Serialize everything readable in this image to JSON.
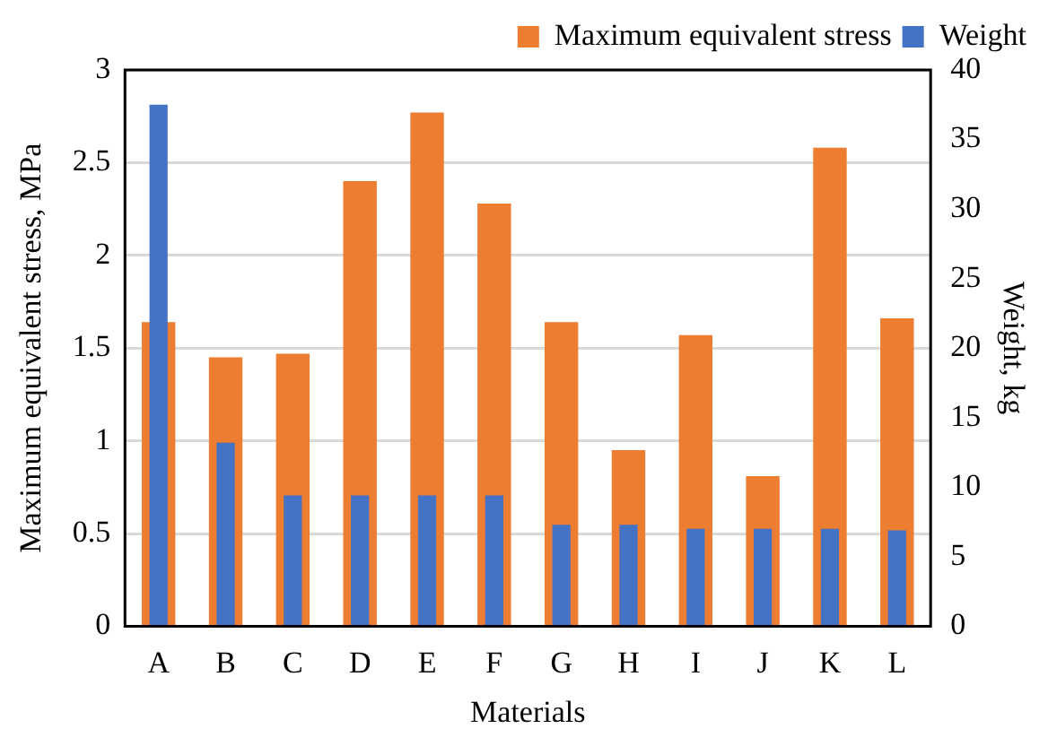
{
  "chart_data": {
    "type": "bar",
    "xlabel": "Materials",
    "ylabel": "Maximum equivalent stress, MPa",
    "y2label": "Weight, kg",
    "categories": [
      "A",
      "B",
      "C",
      "D",
      "E",
      "F",
      "G",
      "H",
      "I",
      "J",
      "K",
      "L"
    ],
    "series": [
      {
        "name": "Maximum equivalent stress",
        "color": "#ed7d31",
        "values": [
          1.64,
          1.45,
          1.47,
          2.4,
          2.77,
          2.28,
          1.64,
          0.95,
          1.57,
          0.81,
          2.58,
          1.66
        ]
      },
      {
        "name": "Weight",
        "color": "#4472c4",
        "axis": "y2",
        "values": [
          37.5,
          13.2,
          9.4,
          9.4,
          9.4,
          9.4,
          7.3,
          7.3,
          7.0,
          7.0,
          7.0,
          6.9
        ]
      }
    ],
    "ylim": [
      0,
      3
    ],
    "yticks": [
      0,
      0.5,
      1,
      1.5,
      2,
      2.5,
      3
    ],
    "y2lim": [
      0,
      40
    ],
    "y2ticks": [
      0,
      5,
      10,
      15,
      20,
      25,
      30,
      35,
      40
    ],
    "grid": "y",
    "legend": "top"
  }
}
